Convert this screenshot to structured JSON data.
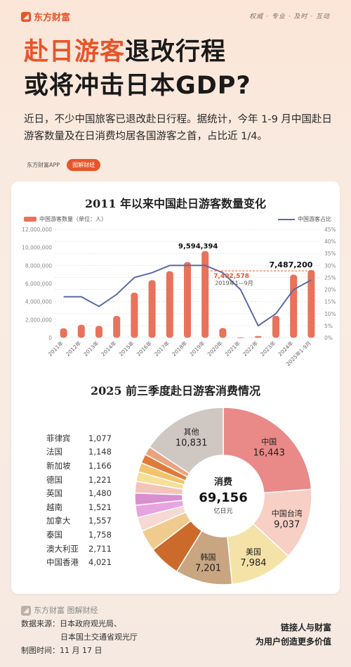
{
  "header": {
    "brand": "东方财富",
    "slogan": "权威 · 专业 · 及时 · 互动"
  },
  "headline": {
    "line1_highlight": "赴日游客",
    "line1_rest": "退改行程",
    "line2": "或将冲击日本GDP?"
  },
  "intro": "近日，不少中国旅客已退改赴日行程。据统计，今年 1-9 月中国赴日游客数量及在日消费均居各国游客之首，占比近 1/4。",
  "tags": {
    "app": "东方财富APP",
    "brand": "图解财经"
  },
  "colors": {
    "accent": "#e8542a",
    "bar": "#e8725a",
    "line": "#5b6aa8"
  },
  "chart_data": [
    {
      "type": "bar+line",
      "title": "2011 年以来中国赴日游客数量变化",
      "legend": {
        "bar": "中国游客数量（单位：人）",
        "line": "中国游客占比"
      },
      "categories": [
        "2011年",
        "2012年",
        "2013年",
        "2014年",
        "2015年",
        "2016年",
        "2017年",
        "2018年",
        "2019年",
        "2020年",
        "2021年",
        "2022年",
        "2023年",
        "2024年",
        "2025年1-9月"
      ],
      "bar_values": [
        1040000,
        1430000,
        1310000,
        2410000,
        4990000,
        6370000,
        7360000,
        8380000,
        9594394,
        1070000,
        42000,
        189000,
        2430000,
        6980000,
        7487200
      ],
      "line_values": [
        17,
        17,
        13,
        18,
        25,
        27,
        30,
        30,
        30,
        27,
        20,
        5,
        10,
        20,
        24
      ],
      "y_left": {
        "min": 0,
        "max": 12000000,
        "ticks": [
          "0",
          "2,000,000",
          "4,000,000",
          "6,000,000",
          "8,000,000",
          "10,000,000",
          "12,000,000"
        ]
      },
      "y_right": {
        "min": 0,
        "max": 45,
        "ticks": [
          "0%",
          "5%",
          "10%",
          "15%",
          "20%",
          "25%",
          "30%",
          "35%",
          "40%",
          "45%"
        ]
      },
      "annotations": {
        "peak_label": "9,594,394",
        "last_label": "7,487,200",
        "compare_value": "7,402,578",
        "compare_note": "2019年1—9月"
      }
    },
    {
      "type": "pie",
      "title": "2025 前三季度赴日游客消费情况",
      "center_label": "消费",
      "center_value": "69,156",
      "center_unit": "亿日元",
      "slices": [
        {
          "label": "中国",
          "value": 16443,
          "display": "16,443",
          "color": "#e98a88"
        },
        {
          "label": "中国台湾",
          "value": 9037,
          "display": "9,037",
          "color": "#f7cfc4"
        },
        {
          "label": "美国",
          "value": 7984,
          "display": "7,984",
          "color": "#f4e2a6"
        },
        {
          "label": "韩国",
          "value": 7201,
          "display": "7,201",
          "color": "#c9a582"
        },
        {
          "label": "中国香港",
          "value": 4021,
          "display": "4,021",
          "color": "#cc6a2b"
        },
        {
          "label": "澳大利亚",
          "value": 2711,
          "display": "2,711",
          "color": "#efcb8e"
        },
        {
          "label": "泰国",
          "value": 1758,
          "display": "1,758",
          "color": "#f6d9d2"
        },
        {
          "label": "加拿大",
          "value": 1557,
          "display": "1,557",
          "color": "#e8a4de"
        },
        {
          "label": "越南",
          "value": 1521,
          "display": "1,521",
          "color": "#d98fcf"
        },
        {
          "label": "英国",
          "value": 1480,
          "display": "1,480",
          "color": "#f2c4bc"
        },
        {
          "label": "德国",
          "value": 1221,
          "display": "1,221",
          "color": "#f6df97"
        },
        {
          "label": "新加坡",
          "value": 1166,
          "display": "1,166",
          "color": "#f2c36a"
        },
        {
          "label": "法国",
          "value": 1148,
          "display": "1,148",
          "color": "#e07a3a"
        },
        {
          "label": "菲律宾",
          "value": 1077,
          "display": "1,077",
          "color": "#eaa37d"
        },
        {
          "label": "其他",
          "value": 10831,
          "display": "10,831",
          "color": "#cfc7c2"
        }
      ],
      "side_list": [
        {
          "label": "菲律宾",
          "value": "1,077"
        },
        {
          "label": "法国",
          "value": "1,148"
        },
        {
          "label": "新加坡",
          "value": "1,166"
        },
        {
          "label": "德国",
          "value": "1,221"
        },
        {
          "label": "英国",
          "value": "1,480"
        },
        {
          "label": "越南",
          "value": "1,521"
        },
        {
          "label": "加拿大",
          "value": "1,557"
        },
        {
          "label": "泰国",
          "value": "1,758"
        },
        {
          "label": "澳大利亚",
          "value": "2,711"
        },
        {
          "label": "中国香港",
          "value": "4,021"
        }
      ]
    }
  ],
  "footer": {
    "brand": "东方财富 图解财经",
    "source_label": "数据来源：日本政府观光局、",
    "source_line2": "日本国土交通省观光厅",
    "date": "制图时间：11 月 17 日",
    "slogan1": "链接人与财富",
    "slogan2": "为用户创造更多价值"
  }
}
